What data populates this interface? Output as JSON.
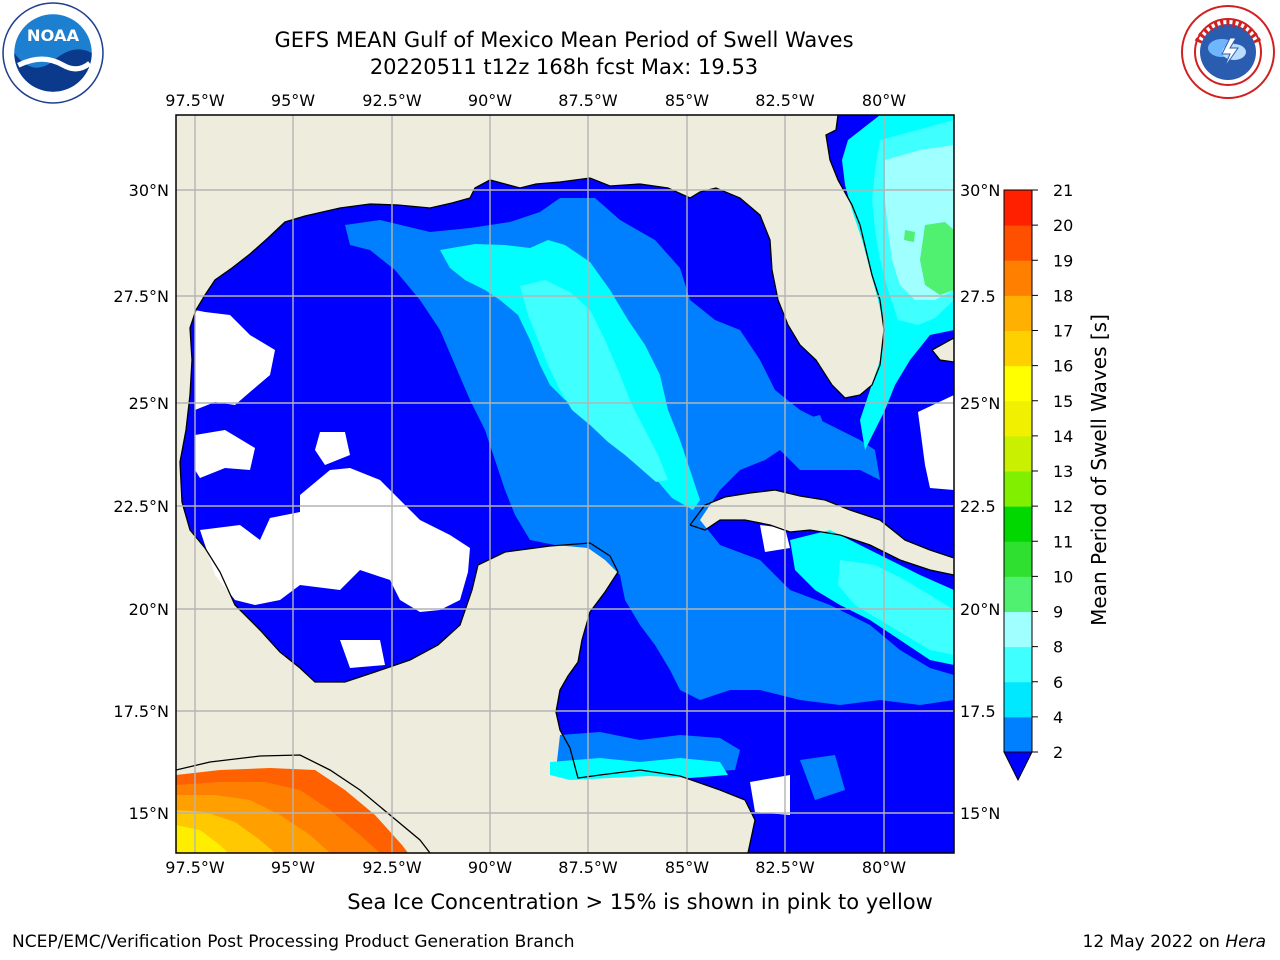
{
  "header": {
    "title_line1": "GEFS MEAN Gulf of Mexico Mean Period of Swell Waves",
    "title_line2": "20220511 t12z 168h fcst   Max: 19.53"
  },
  "logos": {
    "left": "noaa-logo",
    "right": "nws-logo"
  },
  "map": {
    "lon_ticks": [
      "97.5°W",
      "95°W",
      "92.5°W",
      "90°W",
      "87.5°W",
      "85°W",
      "82.5°W",
      "80°W"
    ],
    "lat_ticks_left": [
      "30°N",
      "27.5°N",
      "25°N",
      "22.5°N",
      "20°N",
      "17.5°N",
      "15°N"
    ],
    "lat_ticks_right": [
      "30°N",
      "27.5",
      "25°N",
      "22.5",
      "20°N",
      "17.5",
      "15°N"
    ],
    "colors": {
      "land": "#eeecdc",
      "nodata": "#ffffff",
      "grid": "#b4b4b4",
      "coast": "#000000"
    }
  },
  "colorbar": {
    "title": "Mean Period of Swell Waves [s]",
    "levels": [
      "2",
      "4",
      "6",
      "8",
      "9",
      "10",
      "11",
      "12",
      "13",
      "14",
      "15",
      "16",
      "17",
      "18",
      "19",
      "20",
      "21"
    ],
    "colors": [
      "#0000ff",
      "#0080ff",
      "#00ffff",
      "#40ffff",
      "#a0ffff",
      "#50f070",
      "#20d820",
      "#00ee00",
      "#80f000",
      "#c8f000",
      "#f0f000",
      "#ffff00",
      "#ffd000",
      "#ffb000",
      "#ff8000",
      "#ff5000",
      "#ff2000",
      "#ff0000"
    ],
    "extend_color": "#0000ff"
  },
  "footer": {
    "ice_note": "Sea Ice Concentration > 15% is shown in pink to yellow",
    "credit": "NCEP/EMC/Verification Post Processing Product Generation Branch",
    "date": "12 May 2022 on ",
    "machine": "Hera"
  }
}
